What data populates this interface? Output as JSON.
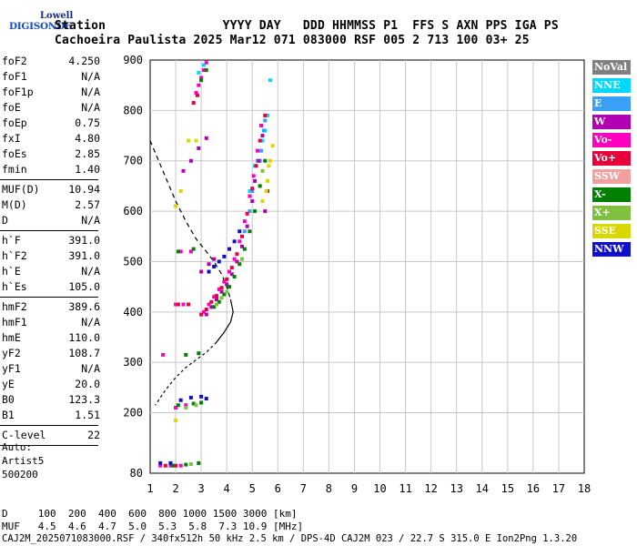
{
  "logo": {
    "line1": "Lowell",
    "line2": "DIGISONDE"
  },
  "header": {
    "row1": "Station                YYYY DAY   DDD HHMMSS P1  FFS S AXN PPS IGA PS",
    "row2": "Cachoeira Paulista 2025 Mar12 071 083000 RSF 005 2 713 100 03+ 25"
  },
  "params": [
    {
      "group": 1,
      "name": "foF2",
      "value": "4.250"
    },
    {
      "group": 1,
      "name": "foF1",
      "value": "N/A"
    },
    {
      "group": 1,
      "name": "foF1p",
      "value": "N/A"
    },
    {
      "group": 1,
      "name": "foE",
      "value": "N/A"
    },
    {
      "group": 1,
      "name": "foEp",
      "value": "0.75"
    },
    {
      "group": 1,
      "name": "fxI",
      "value": "4.80"
    },
    {
      "group": 1,
      "name": "foEs",
      "value": "2.85"
    },
    {
      "group": 1,
      "name": "fmin",
      "value": "1.40"
    },
    {
      "group": 2,
      "name": "MUF(D)",
      "value": "10.94"
    },
    {
      "group": 2,
      "name": "M(D)",
      "value": "2.57"
    },
    {
      "group": 2,
      "name": "D",
      "value": "N/A"
    },
    {
      "group": 3,
      "name": "h`F",
      "value": "391.0"
    },
    {
      "group": 3,
      "name": "h`F2",
      "value": "391.0"
    },
    {
      "group": 3,
      "name": "h`E",
      "value": "N/A"
    },
    {
      "group": 3,
      "name": "h`Es",
      "value": "105.0"
    },
    {
      "group": 4,
      "name": "hmF2",
      "value": "389.6"
    },
    {
      "group": 4,
      "name": "hmF1",
      "value": "N/A"
    },
    {
      "group": 4,
      "name": "hmE",
      "value": "110.0"
    },
    {
      "group": 4,
      "name": "yF2",
      "value": "108.7"
    },
    {
      "group": 4,
      "name": "yF1",
      "value": "N/A"
    },
    {
      "group": 4,
      "name": "yE",
      "value": "20.0"
    },
    {
      "group": 4,
      "name": "B0",
      "value": "123.3"
    },
    {
      "group": 4,
      "name": "B1",
      "value": "1.51"
    },
    {
      "group": 5,
      "name": "C-level",
      "value": "22"
    }
  ],
  "autoscaler": {
    "line1": "Auto:",
    "line2": "Artist5",
    "line3": "500200"
  },
  "legend": [
    {
      "label": "NoVal",
      "color": "#808080"
    },
    {
      "label": "NNE",
      "color": "#00d8ff"
    },
    {
      "label": "E",
      "color": "#3aa0f5"
    },
    {
      "label": "W",
      "color": "#b000b0"
    },
    {
      "label": "Vo-",
      "color": "#ff00c0"
    },
    {
      "label": "Vo+",
      "color": "#e8003a"
    },
    {
      "label": "SSW",
      "color": "#f0a0a0"
    },
    {
      "label": "X-",
      "color": "#008000"
    },
    {
      "label": "X+",
      "color": "#80c040"
    },
    {
      "label": "SSE",
      "color": "#d8d800"
    },
    {
      "label": "NNW",
      "color": "#1010c8"
    }
  ],
  "footer": {
    "row_d": "D     100  200  400  600  800 1000 1500 3000 [km]",
    "row_muf": "MUF   4.5  4.6  4.7  5.0  5.3  5.8  7.3 10.9 [MHz]",
    "row_file": "CAJ2M_2025071083000.RSF / 340fx512h 50 kHz 2.5 km / DPS-4D CAJ2M 023 / 22.7 S 315.0 E Ion2Png 1.3.20"
  },
  "chart_data": {
    "type": "scatter",
    "title": "",
    "xlabel": "",
    "ylabel": "",
    "xlim": [
      1,
      18
    ],
    "ylim": [
      80,
      900
    ],
    "x_ticks": [
      1,
      2,
      3,
      4,
      5,
      6,
      7,
      8,
      9,
      10,
      11,
      12,
      13,
      14,
      15,
      16,
      17,
      18
    ],
    "y_ticks": [
      80,
      200,
      300,
      400,
      500,
      600,
      700,
      800,
      900
    ],
    "grid": true,
    "legend_position": "right",
    "profile_curve": {
      "style": "dashed-then-solid",
      "points": [
        [
          1.0,
          740
        ],
        [
          1.5,
          680
        ],
        [
          2.0,
          620
        ],
        [
          2.4,
          580
        ],
        [
          2.8,
          545
        ],
        [
          3.2,
          520
        ],
        [
          3.5,
          500
        ],
        [
          3.8,
          475
        ],
        [
          4.0,
          450
        ],
        [
          4.15,
          425
        ],
        [
          4.25,
          400
        ],
        [
          4.15,
          380
        ],
        [
          3.9,
          360
        ],
        [
          3.6,
          340
        ],
        [
          3.2,
          320
        ],
        [
          2.8,
          305
        ],
        [
          2.4,
          290
        ],
        [
          2.0,
          270
        ],
        [
          1.6,
          245
        ],
        [
          1.2,
          215
        ]
      ]
    },
    "traces": [
      {
        "name": "NNE",
        "color": "#00d8ff",
        "points": [
          [
            5.2,
            700
          ],
          [
            5.4,
            740
          ],
          [
            5.6,
            790
          ],
          [
            5.7,
            860
          ],
          [
            5.3,
            720
          ],
          [
            5.5,
            760
          ],
          [
            4.9,
            640
          ],
          [
            5.1,
            690
          ],
          [
            2.9,
            875
          ],
          [
            3.1,
            890
          ]
        ]
      },
      {
        "name": "E",
        "color": "#3aa0f5",
        "points": [
          [
            5.35,
            720
          ],
          [
            5.45,
            760
          ],
          [
            5.3,
            700
          ],
          [
            5.5,
            780
          ],
          [
            4.7,
            560
          ],
          [
            4.9,
            600
          ],
          [
            5.0,
            640
          ]
        ]
      },
      {
        "name": "W",
        "color": "#b000b0",
        "points": [
          [
            3.2,
            395
          ],
          [
            3.4,
            410
          ],
          [
            3.6,
            425
          ],
          [
            3.8,
            440
          ],
          [
            4.0,
            455
          ],
          [
            4.2,
            475
          ],
          [
            4.4,
            500
          ],
          [
            4.6,
            530
          ],
          [
            4.8,
            570
          ],
          [
            5.0,
            620
          ],
          [
            5.1,
            660
          ],
          [
            5.25,
            700
          ],
          [
            5.4,
            750
          ],
          [
            3.0,
            480
          ],
          [
            3.3,
            495
          ],
          [
            3.5,
            505
          ],
          [
            2.3,
            680
          ],
          [
            2.6,
            700
          ],
          [
            2.9,
            725
          ],
          [
            3.2,
            745
          ],
          [
            5.6,
            640
          ],
          [
            5.5,
            600
          ]
        ]
      },
      {
        "name": "Vo-",
        "color": "#ff00c0",
        "points": [
          [
            3.1,
            400
          ],
          [
            3.3,
            415
          ],
          [
            3.5,
            430
          ],
          [
            3.7,
            445
          ],
          [
            3.9,
            460
          ],
          [
            4.1,
            480
          ],
          [
            4.3,
            505
          ],
          [
            4.5,
            540
          ],
          [
            4.7,
            580
          ],
          [
            4.9,
            630
          ],
          [
            5.05,
            670
          ],
          [
            5.2,
            720
          ],
          [
            5.35,
            770
          ],
          [
            2.2,
            520
          ],
          [
            2.6,
            520
          ],
          [
            2.8,
            835
          ],
          [
            2.9,
            850
          ],
          [
            3.0,
            865
          ],
          [
            3.1,
            880
          ],
          [
            3.2,
            895
          ],
          [
            2.0,
            415
          ],
          [
            2.3,
            415
          ],
          [
            1.5,
            315
          ],
          [
            2.0,
            210
          ],
          [
            2.4,
            215
          ],
          [
            1.4,
            95
          ],
          [
            1.8,
            95
          ],
          [
            2.2,
            95
          ]
        ]
      },
      {
        "name": "Vo+",
        "color": "#e8003a",
        "points": [
          [
            3.0,
            395
          ],
          [
            3.2,
            405
          ],
          [
            3.4,
            420
          ],
          [
            3.6,
            432
          ],
          [
            3.8,
            448
          ],
          [
            4.0,
            465
          ],
          [
            4.2,
            488
          ],
          [
            4.4,
            515
          ],
          [
            4.6,
            550
          ],
          [
            4.8,
            595
          ],
          [
            5.0,
            645
          ],
          [
            5.15,
            690
          ],
          [
            5.3,
            740
          ],
          [
            5.5,
            790
          ],
          [
            2.7,
            815
          ],
          [
            2.85,
            830
          ],
          [
            2.1,
            415
          ],
          [
            2.5,
            415
          ],
          [
            1.6,
            95
          ],
          [
            2.0,
            95
          ]
        ]
      },
      {
        "name": "X-",
        "color": "#008000",
        "points": [
          [
            3.5,
            410
          ],
          [
            3.7,
            420
          ],
          [
            3.9,
            435
          ],
          [
            4.1,
            450
          ],
          [
            4.3,
            470
          ],
          [
            4.5,
            495
          ],
          [
            4.7,
            525
          ],
          [
            4.9,
            560
          ],
          [
            5.1,
            600
          ],
          [
            5.3,
            650
          ],
          [
            5.5,
            700
          ],
          [
            2.1,
            520
          ],
          [
            2.7,
            525
          ],
          [
            3.0,
            860
          ],
          [
            3.2,
            880
          ],
          [
            2.4,
            315
          ],
          [
            2.9,
            318
          ],
          [
            2.1,
            215
          ],
          [
            2.7,
            218
          ],
          [
            3.0,
            220
          ],
          [
            1.9,
            95
          ],
          [
            2.4,
            97
          ],
          [
            2.9,
            100
          ]
        ]
      },
      {
        "name": "X+",
        "color": "#80c040",
        "points": [
          [
            3.6,
            415
          ],
          [
            3.8,
            428
          ],
          [
            4.0,
            440
          ],
          [
            4.6,
            505
          ],
          [
            5.4,
            680
          ],
          [
            2.4,
            210
          ],
          [
            2.8,
            215
          ],
          [
            2.6,
            98
          ]
        ]
      },
      {
        "name": "SSE",
        "color": "#d8d800",
        "points": [
          [
            5.4,
            620
          ],
          [
            5.6,
            660
          ],
          [
            5.7,
            700
          ],
          [
            5.55,
            640
          ],
          [
            5.8,
            730
          ],
          [
            5.65,
            690
          ],
          [
            2.8,
            740
          ],
          [
            2.5,
            740
          ],
          [
            2.0,
            185
          ],
          [
            2.2,
            640
          ],
          [
            2.0,
            610
          ]
        ]
      },
      {
        "name": "NNW",
        "color": "#1010c8",
        "points": [
          [
            3.3,
            480
          ],
          [
            3.5,
            490
          ],
          [
            3.7,
            500
          ],
          [
            3.9,
            510
          ],
          [
            4.1,
            525
          ],
          [
            4.3,
            540
          ],
          [
            4.5,
            560
          ],
          [
            2.6,
            230
          ],
          [
            3.0,
            232
          ],
          [
            3.2,
            228
          ],
          [
            2.2,
            225
          ],
          [
            1.4,
            100
          ],
          [
            1.8,
            100
          ]
        ]
      }
    ]
  }
}
